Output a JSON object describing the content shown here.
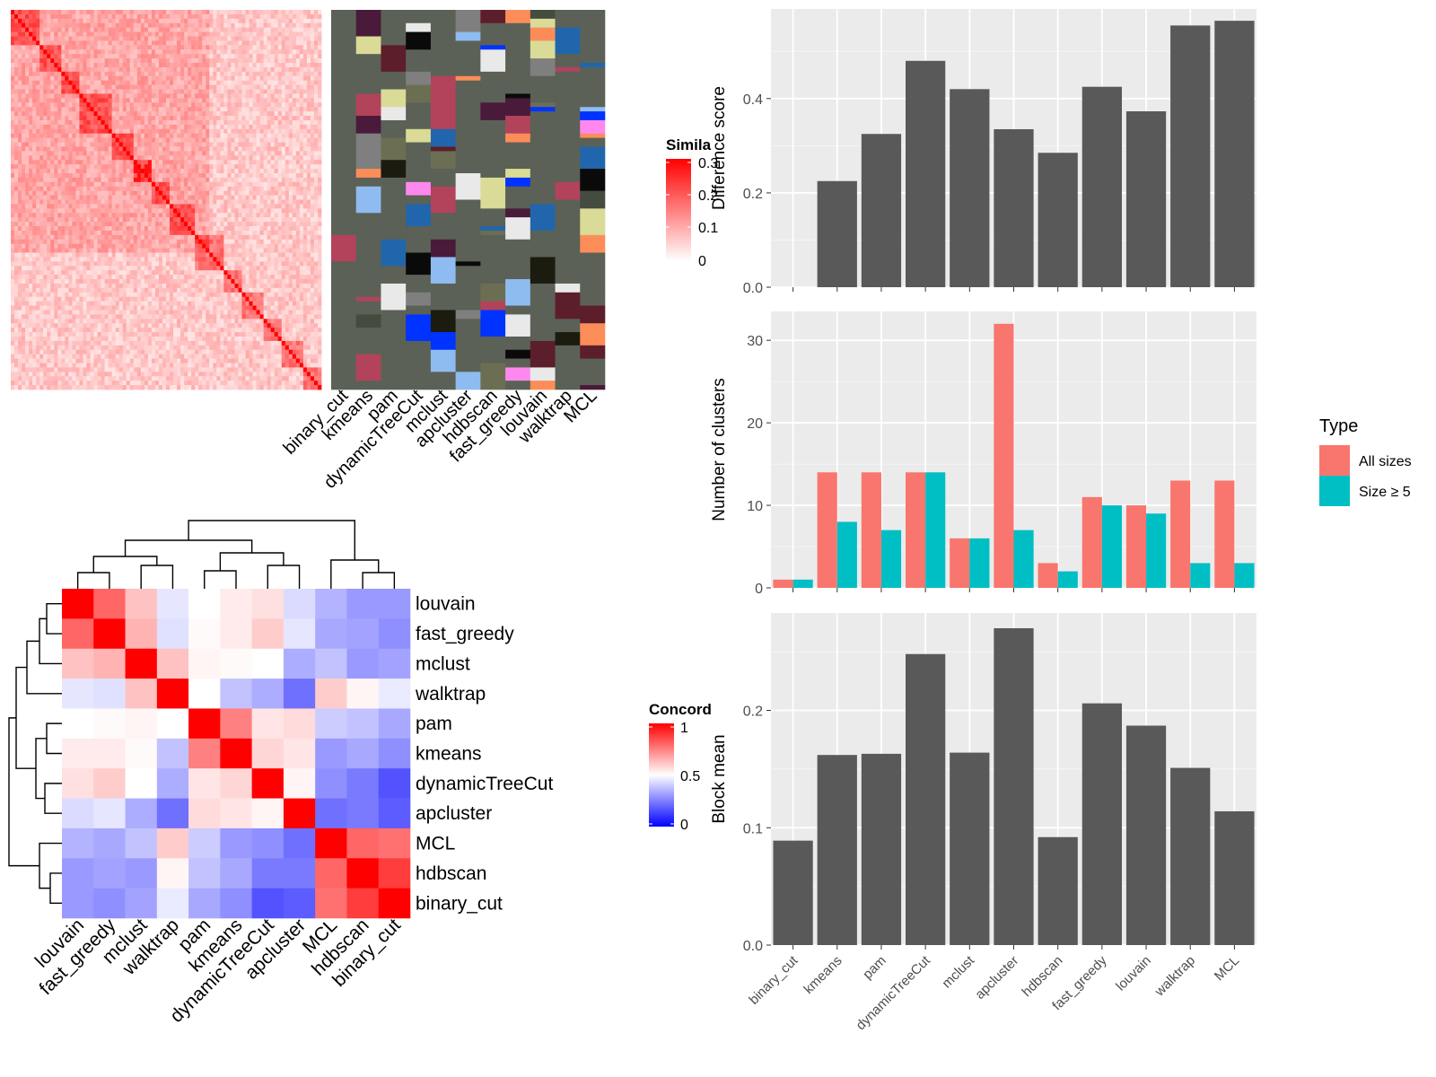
{
  "colors": {
    "panel_bg": "#ebebeb",
    "grid": "#ffffff",
    "bar_gray": "#595959",
    "all_sizes": "#f8766d",
    "size_ge5": "#00bfc4",
    "sim_high": "#ff0000",
    "sim_low": "#ffffff",
    "conc_high": "#ff0000",
    "conc_mid": "#ffffff",
    "conc_low": "#0000ff",
    "cluster_bg": "#5b6156",
    "cluster_palette": [
      "#1b1b0f",
      "#2166ac",
      "#b2435b",
      "#fc8d59",
      "#d9db97",
      "#8fbcf0",
      "#4a1a3a",
      "#5c1e2a",
      "#0a0a0a",
      "#e9e9e9",
      "#ff88ee",
      "#0033ff",
      "#444c40",
      "#7f7f7f",
      "#6b6e52"
    ]
  },
  "methods_order_bars": [
    "binary_cut",
    "kmeans",
    "pam",
    "dynamicTreeCut",
    "mclust",
    "apcluster",
    "hdbscan",
    "fast_greedy",
    "louvain",
    "walktrap",
    "MCL"
  ],
  "methods_order_concordance": [
    "louvain",
    "fast_greedy",
    "mclust",
    "walktrap",
    "pam",
    "kmeans",
    "dynamicTreeCut",
    "apcluster",
    "MCL",
    "hdbscan",
    "binary_cut"
  ],
  "similarity_legend": {
    "title": "Simila",
    "ticks": [
      "0.3",
      "0.2",
      "0.1",
      "0"
    ]
  },
  "concordance_legend": {
    "title": "Concord",
    "ticks": [
      "1",
      "0.5",
      "0"
    ]
  },
  "type_legend": {
    "title": "Type",
    "items": [
      "All sizes",
      "Size ≥ 5"
    ]
  },
  "chart_data": [
    {
      "type": "heatmap",
      "title": "",
      "values_description": "term similarity matrix with 14 diagonal blocks; color scale 0 to 0.3",
      "color_range": [
        0,
        0.3
      ],
      "column_labels": [
        "binary_cut",
        "kmeans",
        "pam",
        "dynamicTreeCut",
        "mclust",
        "apcluster",
        "hdbscan",
        "fast_greedy",
        "louvain",
        "walktrap",
        "MCL"
      ]
    },
    {
      "type": "heatmap",
      "title": "",
      "xlabel": "",
      "ylabel": "",
      "color_range": [
        0,
        1
      ],
      "rows": [
        "louvain",
        "fast_greedy",
        "mclust",
        "walktrap",
        "pam",
        "kmeans",
        "dynamicTreeCut",
        "apcluster",
        "MCL",
        "hdbscan",
        "binary_cut"
      ],
      "columns": [
        "louvain",
        "fast_greedy",
        "mclust",
        "walktrap",
        "pam",
        "kmeans",
        "dynamicTreeCut",
        "apcluster",
        "MCL",
        "hdbscan",
        "binary_cut"
      ],
      "values": [
        [
          1.0,
          0.8,
          0.62,
          0.45,
          0.5,
          0.54,
          0.56,
          0.43,
          0.35,
          0.3,
          0.3
        ],
        [
          0.8,
          1.0,
          0.65,
          0.44,
          0.51,
          0.54,
          0.6,
          0.45,
          0.33,
          0.32,
          0.28
        ],
        [
          0.62,
          0.65,
          1.0,
          0.62,
          0.52,
          0.51,
          0.5,
          0.34,
          0.38,
          0.3,
          0.32
        ],
        [
          0.45,
          0.44,
          0.62,
          1.0,
          0.5,
          0.38,
          0.34,
          0.22,
          0.6,
          0.52,
          0.46
        ],
        [
          0.5,
          0.51,
          0.52,
          0.5,
          1.0,
          0.75,
          0.55,
          0.57,
          0.4,
          0.38,
          0.33
        ],
        [
          0.54,
          0.54,
          0.51,
          0.38,
          0.75,
          1.0,
          0.58,
          0.55,
          0.3,
          0.33,
          0.28
        ],
        [
          0.56,
          0.6,
          0.5,
          0.34,
          0.55,
          0.58,
          1.0,
          0.52,
          0.28,
          0.24,
          0.16
        ],
        [
          0.43,
          0.45,
          0.34,
          0.22,
          0.57,
          0.55,
          0.52,
          1.0,
          0.22,
          0.24,
          0.18
        ],
        [
          0.35,
          0.33,
          0.38,
          0.6,
          0.4,
          0.3,
          0.28,
          0.22,
          1.0,
          0.8,
          0.78
        ],
        [
          0.3,
          0.32,
          0.3,
          0.52,
          0.38,
          0.33,
          0.24,
          0.24,
          0.8,
          1.0,
          0.88
        ],
        [
          0.3,
          0.28,
          0.32,
          0.46,
          0.33,
          0.28,
          0.16,
          0.18,
          0.78,
          0.88,
          1.0
        ]
      ]
    },
    {
      "type": "bar",
      "title": "",
      "xlabel": "",
      "ylabel": "Difference score",
      "categories": [
        "binary_cut",
        "kmeans",
        "pam",
        "dynamicTreeCut",
        "mclust",
        "apcluster",
        "hdbscan",
        "fast_greedy",
        "louvain",
        "walktrap",
        "MCL"
      ],
      "values": [
        0.0,
        0.225,
        0.325,
        0.48,
        0.42,
        0.335,
        0.285,
        0.425,
        0.373,
        0.555,
        0.565
      ],
      "ylim": [
        0,
        0.59
      ],
      "yticks": [
        "0.0",
        "0.2",
        "0.4"
      ],
      "grid": true
    },
    {
      "type": "bar",
      "title": "",
      "xlabel": "",
      "ylabel": "Number of clusters",
      "categories": [
        "binary_cut",
        "kmeans",
        "pam",
        "dynamicTreeCut",
        "mclust",
        "apcluster",
        "hdbscan",
        "fast_greedy",
        "louvain",
        "walktrap",
        "MCL"
      ],
      "series": [
        {
          "name": "All sizes",
          "values": [
            1,
            14,
            14,
            14,
            6,
            32,
            3,
            11,
            10,
            13,
            13
          ]
        },
        {
          "name": "Size ≥ 5",
          "values": [
            1,
            8,
            7,
            14,
            6,
            7,
            2,
            10,
            9,
            3,
            3
          ]
        }
      ],
      "ylim": [
        0,
        33.5
      ],
      "yticks": [
        "0",
        "10",
        "20",
        "30"
      ],
      "legend": "right",
      "grid": true
    },
    {
      "type": "bar",
      "title": "",
      "xlabel": "",
      "ylabel": "Block mean",
      "categories": [
        "binary_cut",
        "kmeans",
        "pam",
        "dynamicTreeCut",
        "mclust",
        "apcluster",
        "hdbscan",
        "fast_greedy",
        "louvain",
        "walktrap",
        "MCL"
      ],
      "values": [
        0.089,
        0.162,
        0.163,
        0.248,
        0.164,
        0.27,
        0.092,
        0.206,
        0.187,
        0.151,
        0.114
      ],
      "ylim": [
        0,
        0.283
      ],
      "yticks": [
        "0.0",
        "0.1",
        "0.2"
      ],
      "grid": true
    }
  ]
}
